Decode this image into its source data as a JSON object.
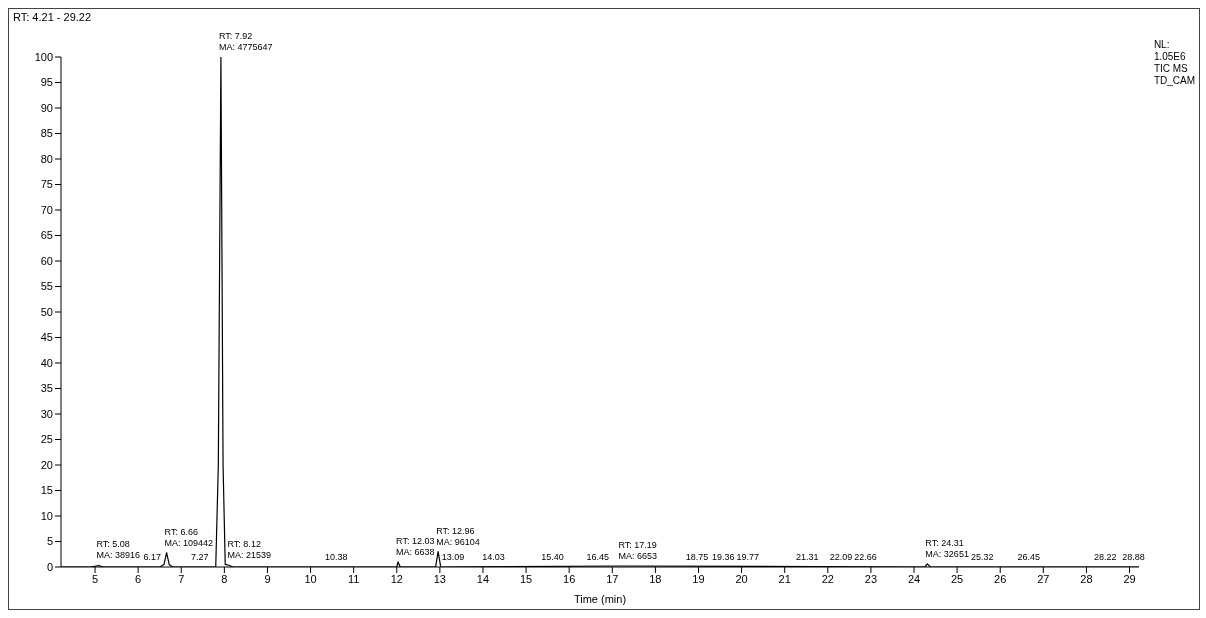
{
  "chart_data": {
    "type": "line",
    "title": "RT: 4.21 - 29.22",
    "xlabel": "Time (min)",
    "x": [
      4.21,
      4.9,
      5.08,
      5.2,
      6.5,
      6.6,
      6.66,
      6.72,
      6.8,
      7.8,
      7.86,
      7.92,
      7.97,
      8.02,
      8.12,
      8.2,
      12.0,
      12.03,
      12.08,
      12.9,
      12.96,
      13.02,
      17.19,
      24.25,
      24.31,
      24.38,
      29.22
    ],
    "series": [
      {
        "color": "#000000",
        "values": [
          0,
          0,
          0.3,
          0,
          0,
          0.5,
          2.8,
          0.5,
          0,
          0,
          20,
          100,
          20,
          0.5,
          0.3,
          0,
          0,
          1,
          0,
          0,
          3,
          0,
          0.2,
          0,
          0.6,
          0,
          0
        ]
      }
    ],
    "xlim": [
      4.21,
      29.22
    ],
    "xticks": [
      5,
      6,
      7,
      8,
      9,
      10,
      11,
      12,
      13,
      14,
      15,
      16,
      17,
      18,
      19,
      20,
      21,
      22,
      23,
      24,
      25,
      26,
      27,
      28,
      29
    ],
    "ylim": [
      0,
      100
    ],
    "yticks": [
      0,
      5,
      10,
      15,
      20,
      25,
      30,
      35,
      40,
      45,
      50,
      55,
      60,
      65,
      70,
      75,
      80,
      85,
      90,
      95,
      100
    ],
    "grid": false,
    "legend": false,
    "marker": "none",
    "line_style": "solid",
    "annotations": [
      {
        "text": "RT: 7.92\nMA: 4775647",
        "x": 7.92,
        "y": 100
      },
      {
        "text": "RT: 5.08\nMA: 38916",
        "x": 5.08,
        "y": 0.3
      },
      {
        "text": "RT: 6.66\nMA: 109442",
        "x": 6.66,
        "y": 2.8
      },
      {
        "text": "6.17",
        "x": 6.17,
        "y": 0
      },
      {
        "text": "7.27",
        "x": 7.27,
        "y": 0
      },
      {
        "text": "RT: 8.12\nMA: 21539",
        "x": 8.12,
        "y": 0.3
      },
      {
        "text": "10.38",
        "x": 10.38,
        "y": 0
      },
      {
        "text": "RT: 12.03\nMA: 6638",
        "x": 12.03,
        "y": 1
      },
      {
        "text": "RT: 12.96\nMA: 96104",
        "x": 12.96,
        "y": 3
      },
      {
        "text": "13.09",
        "x": 13.09,
        "y": 0
      },
      {
        "text": "14.03",
        "x": 14.03,
        "y": 0
      },
      {
        "text": "15.40",
        "x": 15.4,
        "y": 0
      },
      {
        "text": "16.45",
        "x": 16.45,
        "y": 0
      },
      {
        "text": "RT: 17.19\nMA: 6653",
        "x": 17.19,
        "y": 0.2
      },
      {
        "text": "18.75",
        "x": 18.75,
        "y": 0
      },
      {
        "text": "19.36",
        "x": 19.36,
        "y": 0
      },
      {
        "text": "19.77",
        "x": 19.77,
        "y": 0
      },
      {
        "text": "21.31",
        "x": 21.31,
        "y": 0
      },
      {
        "text": "22.09",
        "x": 22.09,
        "y": 0
      },
      {
        "text": "22.66",
        "x": 22.66,
        "y": 0
      },
      {
        "text": "RT: 24.31\nMA: 32651",
        "x": 24.31,
        "y": 0.6
      },
      {
        "text": "25.32",
        "x": 25.32,
        "y": 0
      },
      {
        "text": "26.45",
        "x": 26.45,
        "y": 0
      },
      {
        "text": "28.22",
        "x": 28.22,
        "y": 0
      },
      {
        "text": "28.88",
        "x": 28.88,
        "y": 0
      },
      "NL:\n1.05E6\nTIC  MS\nTD_CAM"
    ]
  }
}
